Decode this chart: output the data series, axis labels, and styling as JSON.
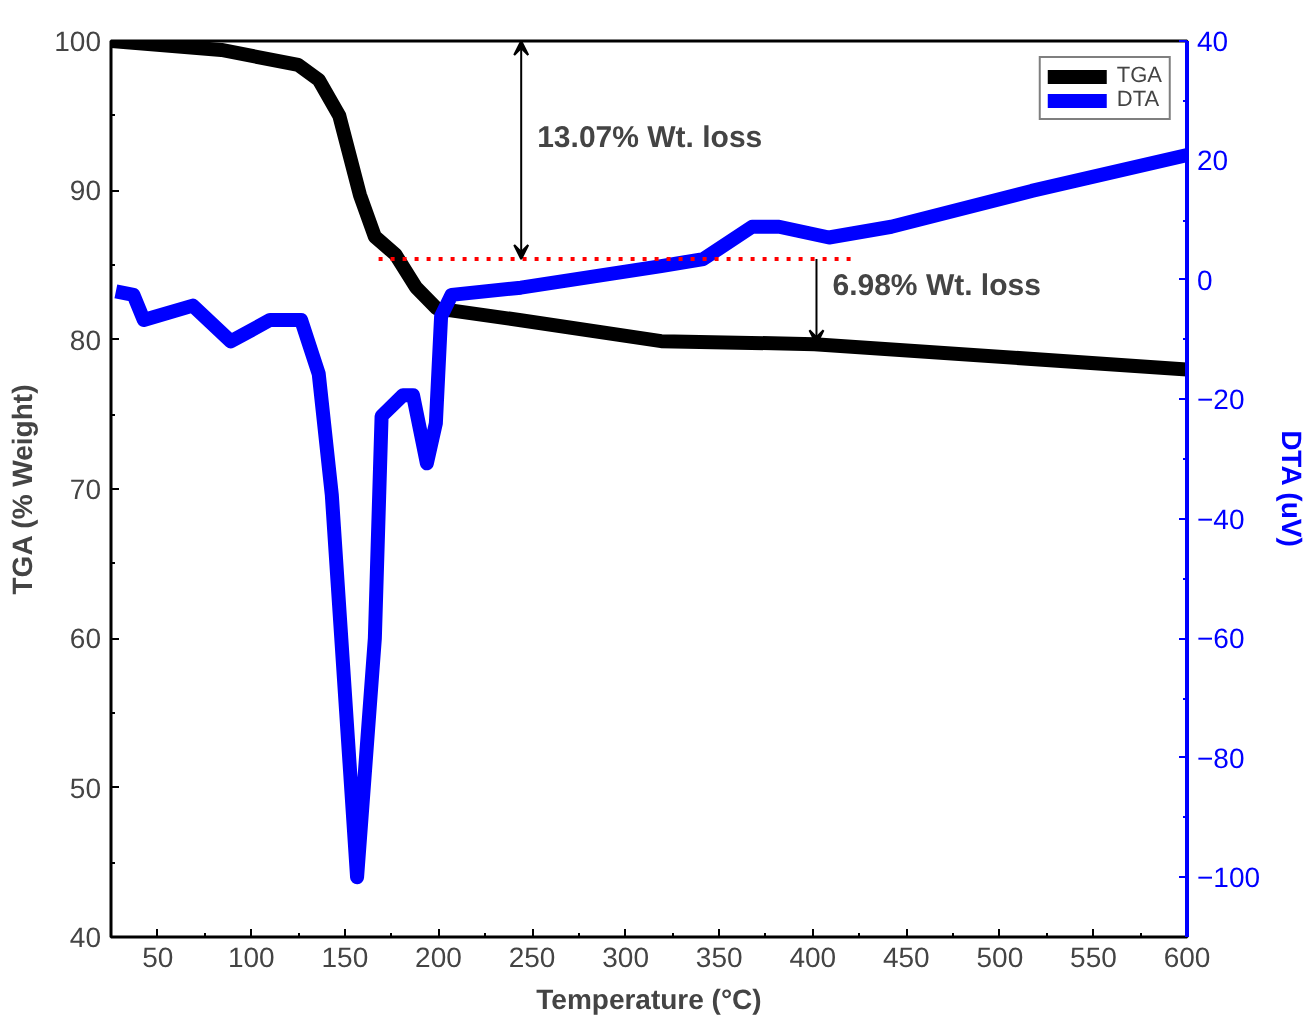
{
  "chart_data": {
    "type": "line",
    "xlabel": "Temperature (°C)",
    "ylabel": "TGA (% Weight)",
    "y2label": "DTA (uV)",
    "xlim": [
      25,
      600
    ],
    "xticks": [
      50,
      100,
      150,
      200,
      250,
      300,
      350,
      400,
      450,
      500,
      550,
      600
    ],
    "ylim": [
      40,
      100
    ],
    "yticks": [
      40,
      50,
      60,
      70,
      80,
      90,
      100
    ],
    "y2lim": [
      -110,
      40
    ],
    "y2ticks": [
      -100,
      -80,
      -60,
      -40,
      -20,
      0,
      20,
      40
    ],
    "legend": "top right",
    "grid": false,
    "series": [
      {
        "name": "TGA",
        "color": "#000000",
        "x": [
          25,
          84,
          125,
          136,
          147,
          158,
          166,
          177,
          188,
          199,
          244,
          319,
          401,
          600
        ],
        "values": [
          100,
          99.4,
          98.4,
          97.4,
          95.0,
          89.7,
          86.9,
          85.7,
          83.5,
          82.1,
          81.3,
          79.9,
          79.7,
          78.0
        ]
      },
      {
        "name": "DTA",
        "color": "#0000ff",
        "axis": "y2",
        "x": [
          27.6,
          37,
          42.5,
          68.7,
          89,
          110,
          126.6,
          136,
          143,
          156.5,
          166,
          169.6,
          181,
          186.4,
          193.8,
          198.6,
          201.4,
          207,
          244,
          319,
          341.5,
          367.6,
          382,
          408.7,
          442,
          517,
          600
        ],
        "values": [
          -1.9,
          -2.5,
          -6.7,
          -4.3,
          -10.3,
          -6.7,
          -6.7,
          -15.7,
          -36,
          -100,
          -60,
          -22.8,
          -19.3,
          -19.3,
          -30.7,
          -24,
          -6.1,
          -2.5,
          -1.3,
          2.3,
          3.5,
          8.9,
          8.9,
          7.1,
          8.9,
          14.9,
          20.9
        ]
      },
      {
        "type": "line",
        "color": "#ff0000",
        "line_style": "dotted",
        "x": [
          168,
          422
        ],
        "values": [
          85.4,
          85.4
        ]
      }
    ],
    "annotations": [
      "13.07% Wt. loss",
      {
        "text": "6.98% Wt. loss",
        "x": 402,
        "y": 85.4
      }
    ]
  }
}
